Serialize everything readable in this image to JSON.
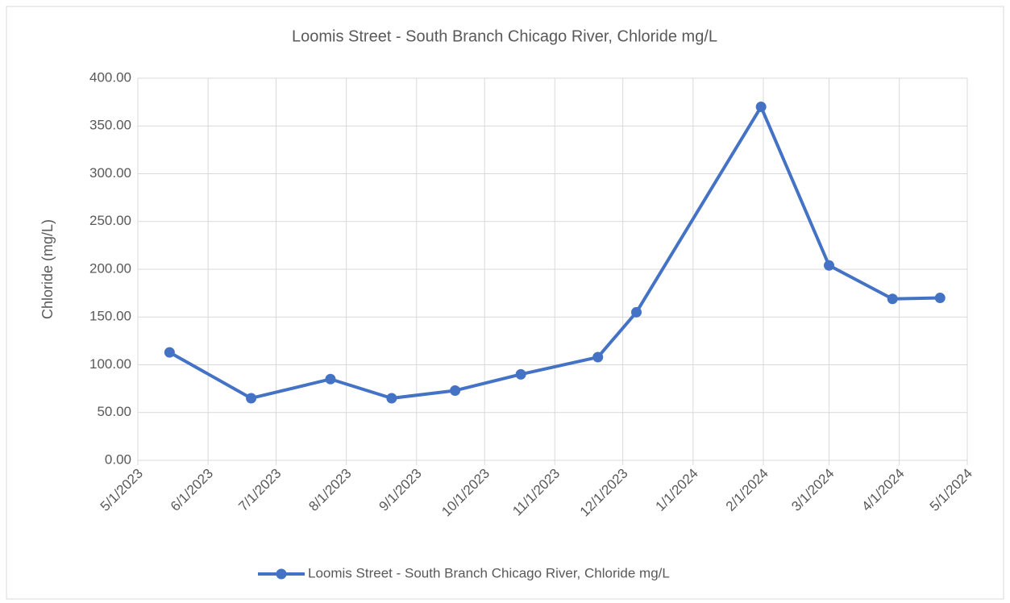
{
  "chart_data": {
    "type": "line",
    "title": "Loomis Street - South Branch Chicago River, Chloride mg/L",
    "y_label": "Chloride (mg/L)",
    "x": [
      "5/15/2023",
      "6/20/2023",
      "7/25/2023",
      "8/21/2023",
      "9/18/2023",
      "10/17/2023",
      "11/20/2023",
      "12/7/2023",
      "1/31/2024",
      "3/1/2024",
      "3/29/2024",
      "4/19/2024"
    ],
    "series": [
      {
        "name": "Loomis Street - South Branch Chicago River, Chloride mg/L",
        "color": "#4472c4",
        "values": [
          113,
          65,
          85,
          65,
          73,
          90,
          108,
          155,
          370,
          204,
          169,
          170
        ]
      }
    ],
    "xlim": [
      "5/1/2023",
      "5/1/2024"
    ],
    "xticks": [
      "5/1/2023",
      "6/1/2023",
      "7/1/2023",
      "8/1/2023",
      "9/1/2023",
      "10/1/2023",
      "11/1/2023",
      "12/1/2023",
      "1/1/2024",
      "2/1/2024",
      "3/1/2024",
      "4/1/2024",
      "5/1/2024"
    ],
    "ylim": [
      0,
      400
    ],
    "yticks": [
      {
        "value": 0,
        "label": "0.00"
      },
      {
        "value": 50,
        "label": "50.00"
      },
      {
        "value": 100,
        "label": "100.00"
      },
      {
        "value": 150,
        "label": "150.00"
      },
      {
        "value": 200,
        "label": "200.00"
      },
      {
        "value": 250,
        "label": "250.00"
      },
      {
        "value": 300,
        "label": "300.00"
      },
      {
        "value": 350,
        "label": "350.00"
      },
      {
        "value": 400,
        "label": "400.00"
      }
    ],
    "grid": true,
    "legend": "bottom"
  }
}
